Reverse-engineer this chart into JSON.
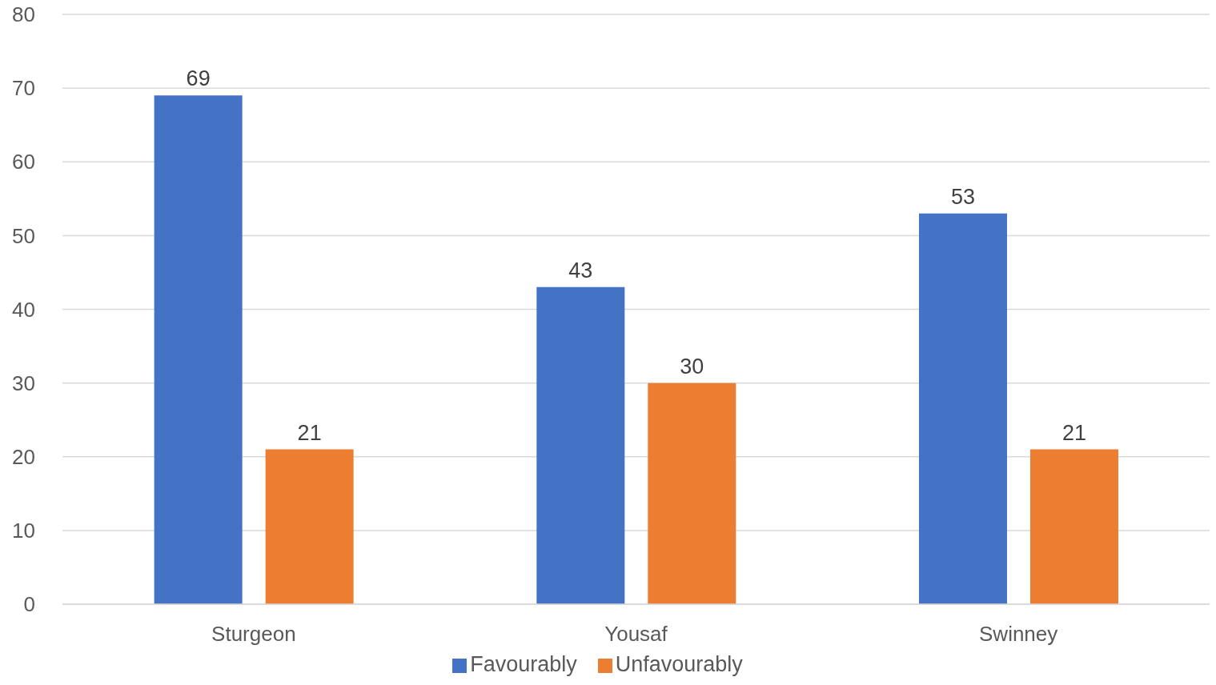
{
  "chart_data": {
    "type": "bar",
    "categories": [
      "Sturgeon",
      "Yousaf",
      "Swinney"
    ],
    "series": [
      {
        "name": "Favourably",
        "color": "#4472c4",
        "values": [
          69,
          43,
          53
        ]
      },
      {
        "name": "Unfavourably",
        "color": "#ed7d31",
        "values": [
          21,
          30,
          21
        ]
      }
    ],
    "ylim": [
      0,
      80
    ],
    "yticks": [
      0,
      10,
      20,
      30,
      40,
      50,
      60,
      70,
      80
    ],
    "grid": "y",
    "legend": "bottom",
    "data_labels": true
  }
}
